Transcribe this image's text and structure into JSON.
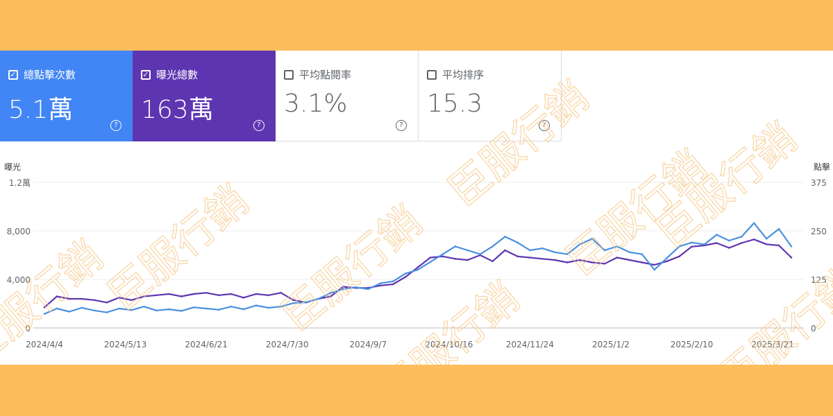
{
  "cards": [
    {
      "label": "總點擊次數",
      "value": "5.1萬",
      "checked": true
    },
    {
      "label": "曝光總數",
      "value": "163萬",
      "checked": true
    },
    {
      "label": "平均點閱率",
      "value": "3.1%",
      "checked": false
    },
    {
      "label": "平均排序",
      "value": "15.3",
      "checked": false
    }
  ],
  "help_glyph": "?",
  "check_glyph": "✓",
  "watermark": "臣服行銷",
  "colors": {
    "clicks": "#4a8fe0",
    "impressions": "#5e35b1",
    "frame": "#fdbd5c"
  },
  "chart_data": {
    "type": "line",
    "left_axis_title": "曝光",
    "right_axis_title": "點擊",
    "left_ticks": [
      "0",
      "4,000",
      "8,000",
      "1.2萬"
    ],
    "right_ticks": [
      "0",
      "125",
      "250",
      "375"
    ],
    "left_ylim": [
      0,
      12000
    ],
    "right_ylim": [
      0,
      375
    ],
    "x_tick_labels": [
      "2024/4/4",
      "2024/5/13",
      "2024/6/21",
      "2024/7/30",
      "2024/9/7",
      "2024/10/16",
      "2024/11/24",
      "2025/1/2",
      "2025/2/10",
      "2025/3/21"
    ],
    "dates": [
      "2024/4/4",
      "2024/4/10",
      "2024/4/16",
      "2024/4/22",
      "2024/4/28",
      "2024/5/4",
      "2024/5/10",
      "2024/5/16",
      "2024/5/22",
      "2024/5/28",
      "2024/6/3",
      "2024/6/9",
      "2024/6/15",
      "2024/6/21",
      "2024/6/27",
      "2024/7/3",
      "2024/7/9",
      "2024/7/15",
      "2024/7/21",
      "2024/7/27",
      "2024/8/2",
      "2024/8/8",
      "2024/8/14",
      "2024/8/20",
      "2024/8/26",
      "2024/9/1",
      "2024/9/7",
      "2024/9/13",
      "2024/9/19",
      "2024/9/25",
      "2024/10/1",
      "2024/10/7",
      "2024/10/13",
      "2024/10/19",
      "2024/10/25",
      "2024/10/31",
      "2024/11/6",
      "2024/11/12",
      "2024/11/18",
      "2024/11/24",
      "2024/11/30",
      "2024/12/6",
      "2024/12/12",
      "2024/12/18",
      "2024/12/24",
      "2024/12/30",
      "2025/1/5",
      "2025/1/11",
      "2025/1/17",
      "2025/1/23",
      "2025/1/29",
      "2025/2/4",
      "2025/2/10",
      "2025/2/16",
      "2025/2/22",
      "2025/2/28",
      "2025/3/6",
      "2025/3/12",
      "2025/3/18",
      "2025/3/24",
      "2025/3/30"
    ],
    "series": [
      {
        "name": "曝光總數",
        "axis": "left",
        "color": "#5e35b1",
        "values": [
          1700,
          2600,
          2400,
          2400,
          2300,
          2100,
          2500,
          2300,
          2600,
          2700,
          2800,
          2600,
          2800,
          2900,
          2700,
          2800,
          2500,
          2800,
          2700,
          2900,
          2300,
          2100,
          2400,
          2600,
          3400,
          3300,
          3300,
          3500,
          3600,
          4200,
          5000,
          5800,
          5900,
          5700,
          5600,
          6000,
          5500,
          6400,
          5900,
          5800,
          5700,
          5600,
          5400,
          5600,
          5400,
          5300,
          5800,
          5600,
          5400,
          5200,
          5500,
          5900,
          6700,
          6800,
          7000,
          6600,
          7000,
          7300,
          6900,
          6800,
          5800
        ]
      },
      {
        "name": "總點擊次數",
        "axis": "right",
        "color": "#4a8fe0",
        "values": [
          36,
          50,
          42,
          52,
          45,
          40,
          50,
          46,
          55,
          45,
          48,
          44,
          53,
          50,
          47,
          55,
          48,
          58,
          52,
          55,
          64,
          66,
          75,
          90,
          100,
          105,
          100,
          115,
          120,
          140,
          150,
          170,
          190,
          210,
          200,
          190,
          210,
          235,
          220,
          200,
          205,
          195,
          190,
          215,
          230,
          200,
          210,
          195,
          190,
          150,
          180,
          210,
          220,
          215,
          240,
          225,
          235,
          270,
          230,
          255,
          210
        ]
      }
    ]
  }
}
